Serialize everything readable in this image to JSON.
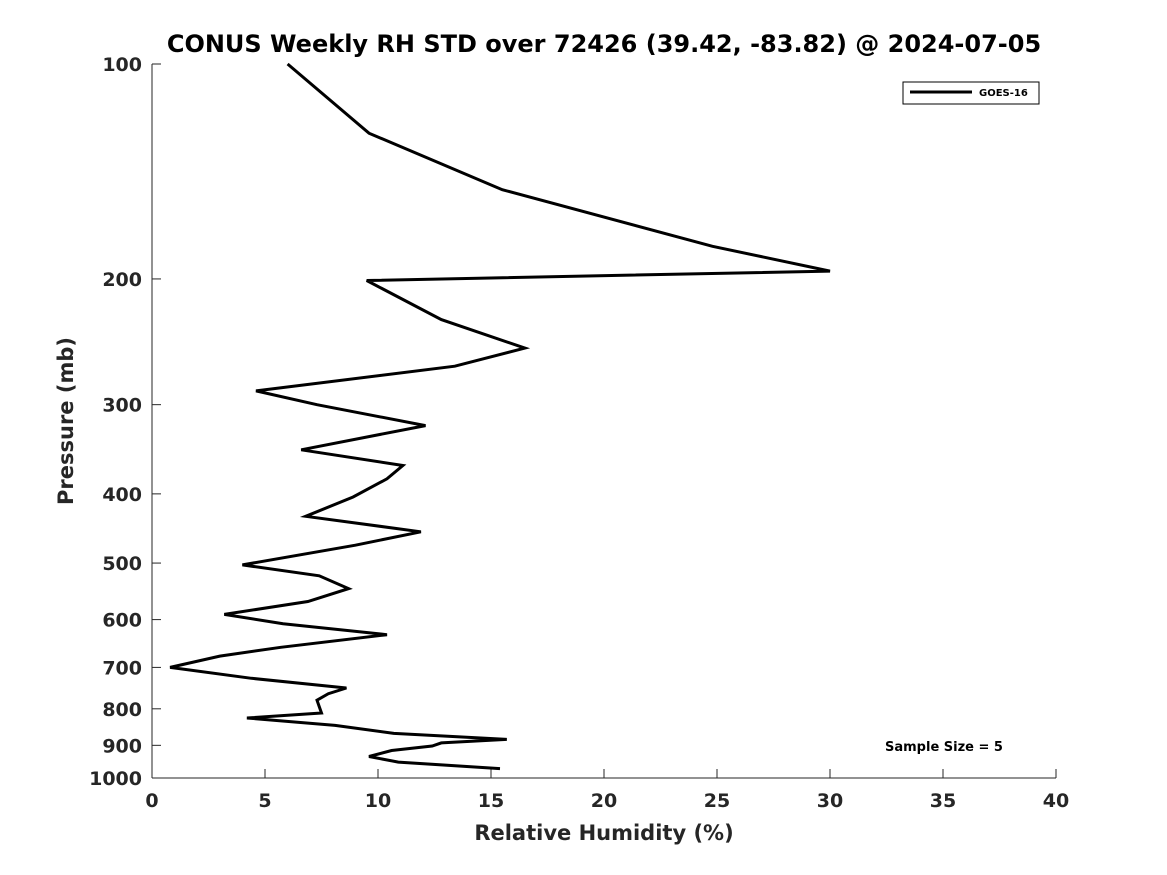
{
  "chart_data": {
    "type": "line",
    "title": "CONUS Weekly RH STD over 72426 (39.42, -83.82) @ 2024-07-05",
    "xlabel": "Relative Humidity (%)",
    "ylabel": "Pressure (mb)",
    "xlim": [
      0,
      40
    ],
    "ylim": [
      100,
      1000
    ],
    "y_scale": "log",
    "y_reversed": true,
    "x_ticks": [
      0,
      5,
      10,
      15,
      20,
      25,
      30,
      35,
      40
    ],
    "y_ticks": [
      100,
      200,
      300,
      400,
      500,
      600,
      700,
      800,
      900,
      1000
    ],
    "grid": false,
    "legend_position": "top-right",
    "series": [
      {
        "name": "GOES-16",
        "color": "#000000",
        "points": [
          [
            6.0,
            100
          ],
          [
            9.6,
            125
          ],
          [
            15.5,
            150
          ],
          [
            24.8,
            180
          ],
          [
            30.0,
            195
          ],
          [
            9.5,
            201
          ],
          [
            12.8,
            228
          ],
          [
            16.5,
            250
          ],
          [
            13.4,
            265
          ],
          [
            4.6,
            287
          ],
          [
            7.3,
            300
          ],
          [
            12.1,
            321
          ],
          [
            6.6,
            347
          ],
          [
            11.1,
            365
          ],
          [
            10.4,
            381
          ],
          [
            8.9,
            404
          ],
          [
            6.8,
            430
          ],
          [
            11.9,
            452
          ],
          [
            9.0,
            472
          ],
          [
            4.0,
            503
          ],
          [
            7.4,
            521
          ],
          [
            8.7,
            543
          ],
          [
            6.9,
            566
          ],
          [
            3.2,
            590
          ],
          [
            5.8,
            608
          ],
          [
            10.4,
            630
          ],
          [
            5.7,
            656
          ],
          [
            3.0,
            675
          ],
          [
            0.8,
            700
          ],
          [
            4.4,
            725
          ],
          [
            8.6,
            748
          ],
          [
            7.8,
            762
          ],
          [
            7.3,
            778
          ],
          [
            7.4,
            794
          ],
          [
            7.5,
            811
          ],
          [
            4.2,
            824
          ],
          [
            8.1,
            844
          ],
          [
            10.7,
            866
          ],
          [
            15.7,
            883
          ],
          [
            12.8,
            893
          ],
          [
            12.4,
            902
          ],
          [
            10.6,
            915
          ],
          [
            9.6,
            933
          ],
          [
            10.9,
            950
          ],
          [
            15.4,
            970
          ]
        ]
      }
    ],
    "annotation": "Sample Size = 5"
  }
}
